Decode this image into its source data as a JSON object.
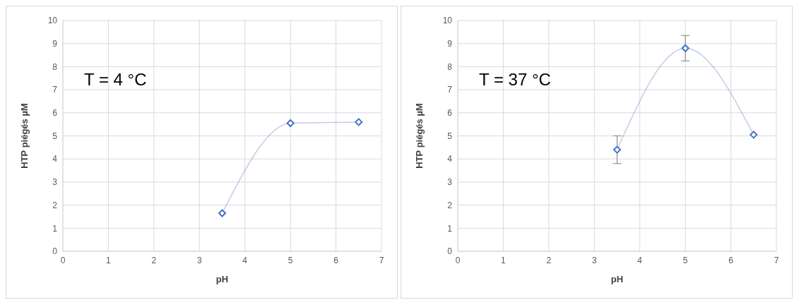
{
  "chart_data": [
    {
      "type": "line",
      "xlabel": "pH",
      "ylabel": "HTP piégés µM",
      "annotations": [
        "T = 4 °C"
      ],
      "x": [
        3.5,
        5,
        6.5
      ],
      "series": [
        {
          "color": "#4472c4",
          "values": [
            1.65,
            5.55,
            5.6
          ]
        }
      ],
      "xlim": [
        0,
        7
      ],
      "xticks": [
        0,
        1,
        2,
        3,
        4,
        5,
        6,
        7
      ],
      "ylim": [
        0,
        10
      ],
      "yticks": [
        0,
        1,
        2,
        3,
        4,
        5,
        6,
        7,
        8,
        9,
        10
      ],
      "grid": true,
      "marker": "diamond",
      "line_style": "solid"
    },
    {
      "type": "line",
      "xlabel": "pH",
      "ylabel": "HTP piégés µM",
      "annotations": [
        "T = 37 °C"
      ],
      "x": [
        3.5,
        5,
        6.5
      ],
      "series": [
        {
          "color": "#4472c4",
          "values": [
            4.4,
            8.8,
            5.05
          ],
          "errors": [
            [
              3.8,
              5.0
            ],
            [
              8.25,
              9.35
            ],
            null
          ]
        }
      ],
      "xlim": [
        0,
        7
      ],
      "xticks": [
        0,
        1,
        2,
        3,
        4,
        5,
        6,
        7
      ],
      "ylim": [
        0,
        10
      ],
      "yticks": [
        0,
        1,
        2,
        3,
        4,
        5,
        6,
        7,
        8,
        9,
        10
      ],
      "grid": true,
      "marker": "diamond",
      "line_style": "solid"
    }
  ]
}
